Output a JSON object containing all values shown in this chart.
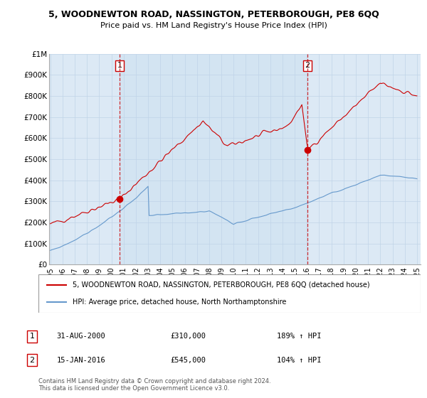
{
  "title": "5, WOODNEWTON ROAD, NASSINGTON, PETERBOROUGH, PE8 6QQ",
  "subtitle": "Price paid vs. HM Land Registry's House Price Index (HPI)",
  "legend_red": "5, WOODNEWTON ROAD, NASSINGTON, PETERBOROUGH, PE8 6QQ (detached house)",
  "legend_blue": "HPI: Average price, detached house, North Northamptonshire",
  "footnote": "Contains HM Land Registry data © Crown copyright and database right 2024.\nThis data is licensed under the Open Government Licence v3.0.",
  "transaction1_date": "31-AUG-2000",
  "transaction1_price": 310000,
  "transaction1_hpi": "189% ↑ HPI",
  "transaction2_date": "15-JAN-2016",
  "transaction2_price": 545000,
  "transaction2_hpi": "104% ↑ HPI",
  "ylim": [
    0,
    1000000
  ],
  "yticks": [
    0,
    100000,
    200000,
    300000,
    400000,
    500000,
    600000,
    700000,
    800000,
    900000,
    1000000
  ],
  "ytick_labels": [
    "£0",
    "£100K",
    "£200K",
    "£300K",
    "£400K",
    "£500K",
    "£600K",
    "£700K",
    "£800K",
    "£900K",
    "£1M"
  ],
  "red_color": "#cc0000",
  "blue_color": "#6699cc",
  "bg_color": "#dce9f5",
  "grid_color": "#c0d4e8",
  "transaction1_x": 2000.667,
  "transaction2_x": 2016.042,
  "shade_color": "#c8dcf0",
  "xtick_start": 1995,
  "xtick_end": 2025
}
